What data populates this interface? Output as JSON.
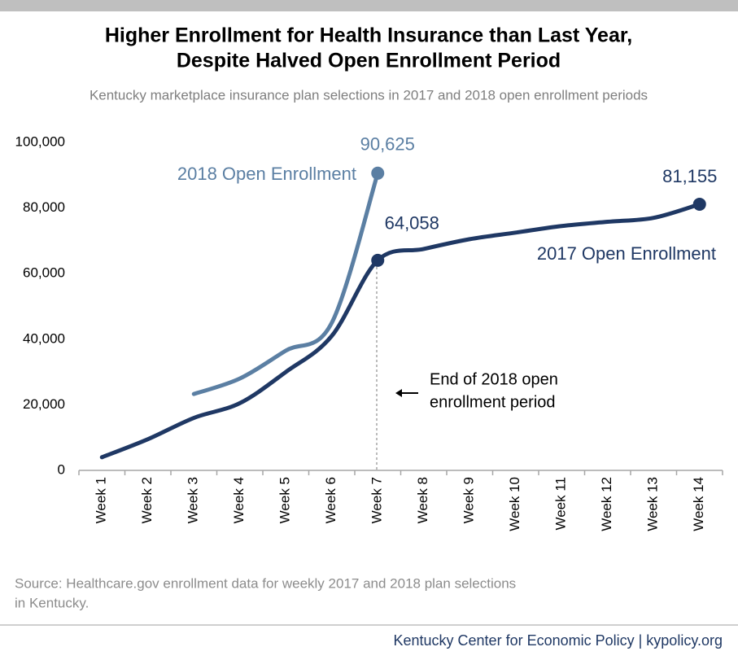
{
  "chart_data": {
    "type": "line",
    "title": [
      "Higher Enrollment for Health Insurance than Last Year,",
      "Despite Halved Open Enrollment Period"
    ],
    "subtitle": "Kentucky marketplace insurance plan selections in 2017 and 2018 open enrollment periods",
    "categories": [
      "Week 1",
      "Week 2",
      "Week 3",
      "Week 4",
      "Week 5",
      "Week 6",
      "Week 7",
      "Week 8",
      "Week 9",
      "Week 10",
      "Week 11",
      "Week 12",
      "Week 13",
      "Week 14"
    ],
    "series": [
      {
        "name": "2018 Open Enrollment",
        "color": "#5b7fa3",
        "values": [
          null,
          null,
          23300,
          28000,
          36500,
          45000,
          90625,
          null,
          null,
          null,
          null,
          null,
          null,
          null
        ],
        "value_labels": [
          null,
          null,
          null,
          null,
          null,
          null,
          "90,625",
          null,
          null,
          null,
          null,
          null,
          null,
          null
        ]
      },
      {
        "name": "2017 Open Enrollment",
        "color": "#1f3864",
        "values": [
          4000,
          9500,
          16000,
          20500,
          30000,
          41000,
          64058,
          67500,
          70500,
          72500,
          74500,
          75800,
          77000,
          81155
        ],
        "value_labels": [
          null,
          null,
          null,
          null,
          null,
          null,
          "64,058",
          null,
          null,
          null,
          null,
          null,
          null,
          "81,155"
        ]
      }
    ],
    "ylim": [
      0,
      100000
    ],
    "yticks": [
      0,
      {
        "value": 20000,
        "label": "20,000"
      },
      {
        "value": 40000,
        "label": "40,000"
      },
      {
        "value": 60000,
        "label": "60,000"
      },
      {
        "value": 80000,
        "label": "80,000"
      },
      {
        "value": 100000,
        "label": "100,000"
      }
    ],
    "annotation": [
      "End of 2018 open",
      "enrollment period"
    ],
    "source": [
      "Source: Healthcare.gov enrollment  data for weekly 2017 and 2018 plan selections",
      "in Kentucky."
    ],
    "footer": "Kentucky Center for Economic Policy | kypolicy.org"
  }
}
